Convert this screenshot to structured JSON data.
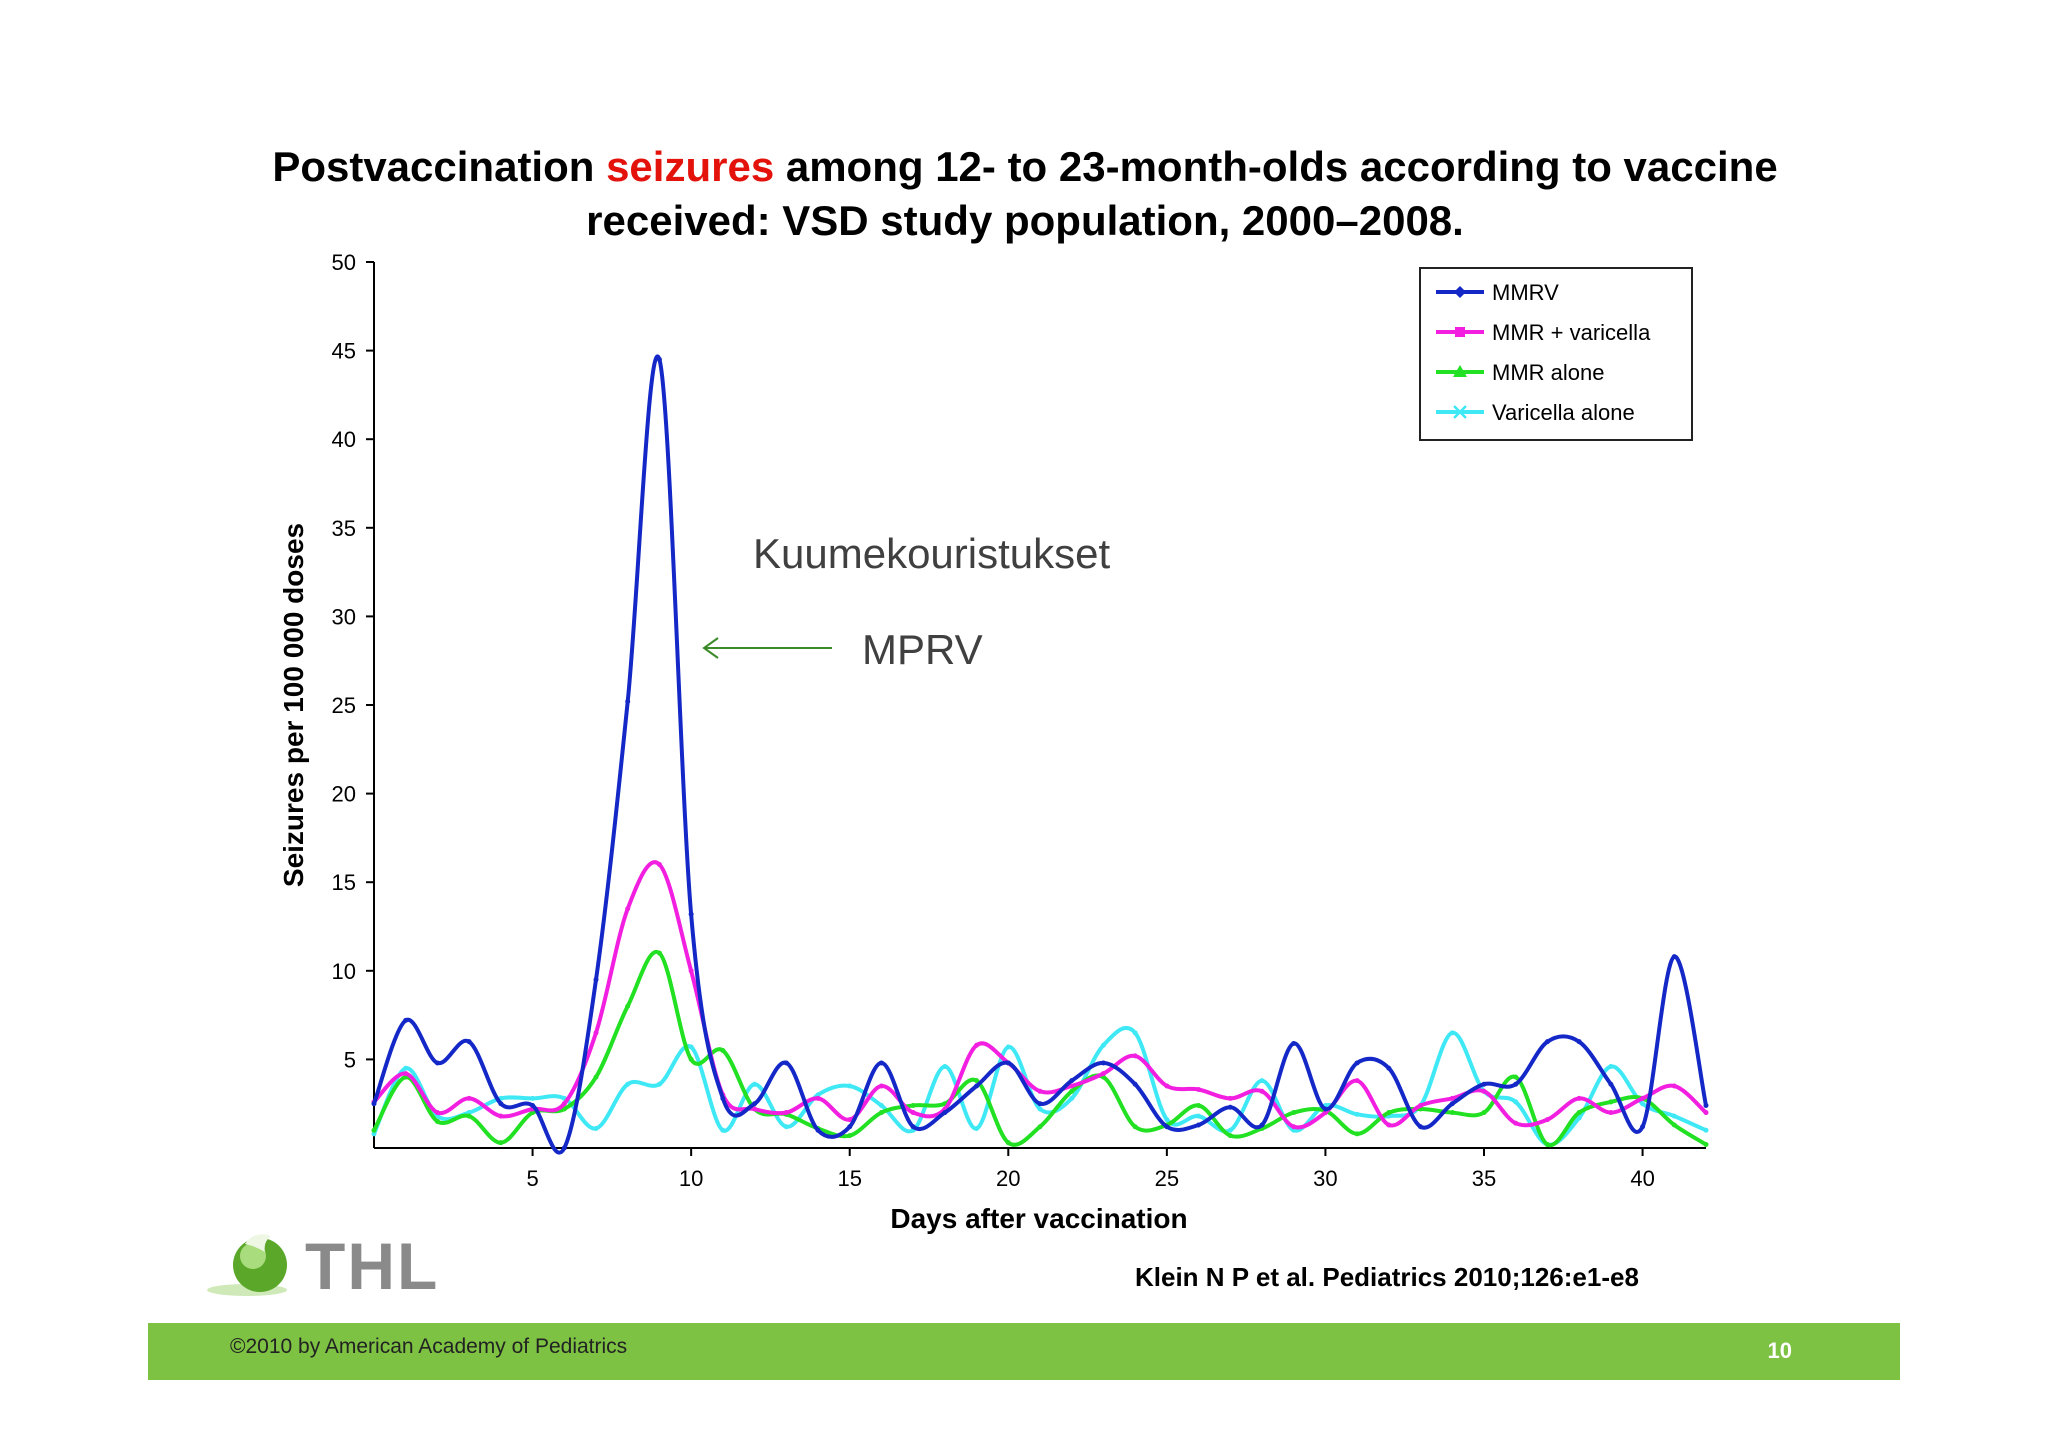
{
  "title": {
    "part1": "Postvaccination ",
    "highlight": "seizures",
    "part2": " among 12- to 23-month-olds according to vaccine",
    "line2": "received: VSD study population, 2000–2008."
  },
  "annotations": {
    "main": "Kuumekouristukset",
    "arrow_label": "MPRV"
  },
  "citation": "Klein N P et al. Pediatrics 2010;126:e1-e8",
  "footer": {
    "copyright": "©2010 by American Academy of Pediatrics",
    "page_number": "10"
  },
  "logo": {
    "text": "THL"
  },
  "colors": {
    "title_highlight": "#e3120b",
    "footer_bar": "#7dc243",
    "mmrv": "#1428c8",
    "mmr_varicella": "#f21fe0",
    "mmr_alone": "#22e022",
    "varicella_alone": "#3fe8f5"
  },
  "chart_data": {
    "type": "line",
    "title": "Postvaccination seizures among 12- to 23-month-olds according to vaccine received: VSD study population, 2000–2008.",
    "xlabel": "Days after vaccination",
    "ylabel": "Seizures per 100 000 doses",
    "xlim": [
      0,
      42
    ],
    "ylim": [
      0,
      50
    ],
    "xticks": [
      5,
      10,
      15,
      20,
      25,
      30,
      35,
      40
    ],
    "yticks": [
      5,
      10,
      15,
      20,
      25,
      30,
      35,
      40,
      45,
      50
    ],
    "legend_position": "top-right",
    "x": [
      0,
      1,
      2,
      3,
      4,
      5,
      6,
      7,
      8,
      9,
      10,
      11,
      12,
      13,
      14,
      15,
      16,
      17,
      18,
      19,
      20,
      21,
      22,
      23,
      24,
      25,
      26,
      27,
      28,
      29,
      30,
      31,
      32,
      33,
      34,
      35,
      36,
      37,
      38,
      39,
      40,
      41,
      42
    ],
    "series": [
      {
        "name": "MMRV",
        "color": "#1428c8",
        "values": [
          2.5,
          7.2,
          4.8,
          6.0,
          2.5,
          2.4,
          0,
          9.5,
          25.2,
          44.5,
          13.2,
          2.8,
          2.5,
          4.8,
          1.0,
          1.2,
          4.8,
          1.2,
          2.0,
          3.5,
          4.8,
          2.5,
          3.8,
          4.8,
          3.6,
          1.2,
          1.3,
          2.3,
          1.3,
          5.9,
          2.2,
          4.8,
          4.5,
          1.2,
          2.5,
          3.6,
          3.6,
          6.0,
          6.0,
          3.6,
          1.2,
          10.8,
          2.4
        ]
      },
      {
        "name": "MMR + varicella",
        "color": "#f21fe0",
        "values": [
          2.6,
          4.2,
          2.0,
          2.8,
          1.8,
          2.2,
          2.5,
          6.5,
          13.5,
          16.0,
          10.0,
          3.0,
          2.2,
          2.0,
          2.8,
          1.6,
          3.5,
          2.0,
          2.2,
          5.8,
          4.8,
          3.2,
          3.5,
          4.2,
          5.2,
          3.5,
          3.3,
          2.8,
          3.2,
          1.2,
          2.0,
          3.8,
          1.3,
          2.4,
          2.8,
          3.2,
          1.4,
          1.6,
          2.8,
          2.0,
          2.8,
          3.5,
          2.0
        ]
      },
      {
        "name": "MMR alone",
        "color": "#22e022",
        "values": [
          1.0,
          4.0,
          1.5,
          1.8,
          0.3,
          2.0,
          2.2,
          4.0,
          8.0,
          11.0,
          5.0,
          5.5,
          2.2,
          1.9,
          1.1,
          0.7,
          2.0,
          2.4,
          2.5,
          3.8,
          0.3,
          1.2,
          3.2,
          4.0,
          1.2,
          1.3,
          2.4,
          0.7,
          1.1,
          2.0,
          2.1,
          0.8,
          2.0,
          2.2,
          2.0,
          2.0,
          4.0,
          0.2,
          2.0,
          2.6,
          2.8,
          1.3,
          0.2
        ]
      },
      {
        "name": "Varicella alone",
        "color": "#3fe8f5",
        "values": [
          0.8,
          4.5,
          1.8,
          2.0,
          2.8,
          2.8,
          2.8,
          1.1,
          3.6,
          3.6,
          5.7,
          1.0,
          3.6,
          1.2,
          3.0,
          3.5,
          2.4,
          1.0,
          4.6,
          1.1,
          5.7,
          2.2,
          2.8,
          5.8,
          6.5,
          1.6,
          1.8,
          1.0,
          3.8,
          1.0,
          2.4,
          1.9,
          1.8,
          2.4,
          6.5,
          3.2,
          2.6,
          0.2,
          1.7,
          4.6,
          2.5,
          1.8,
          1.0
        ]
      }
    ]
  }
}
